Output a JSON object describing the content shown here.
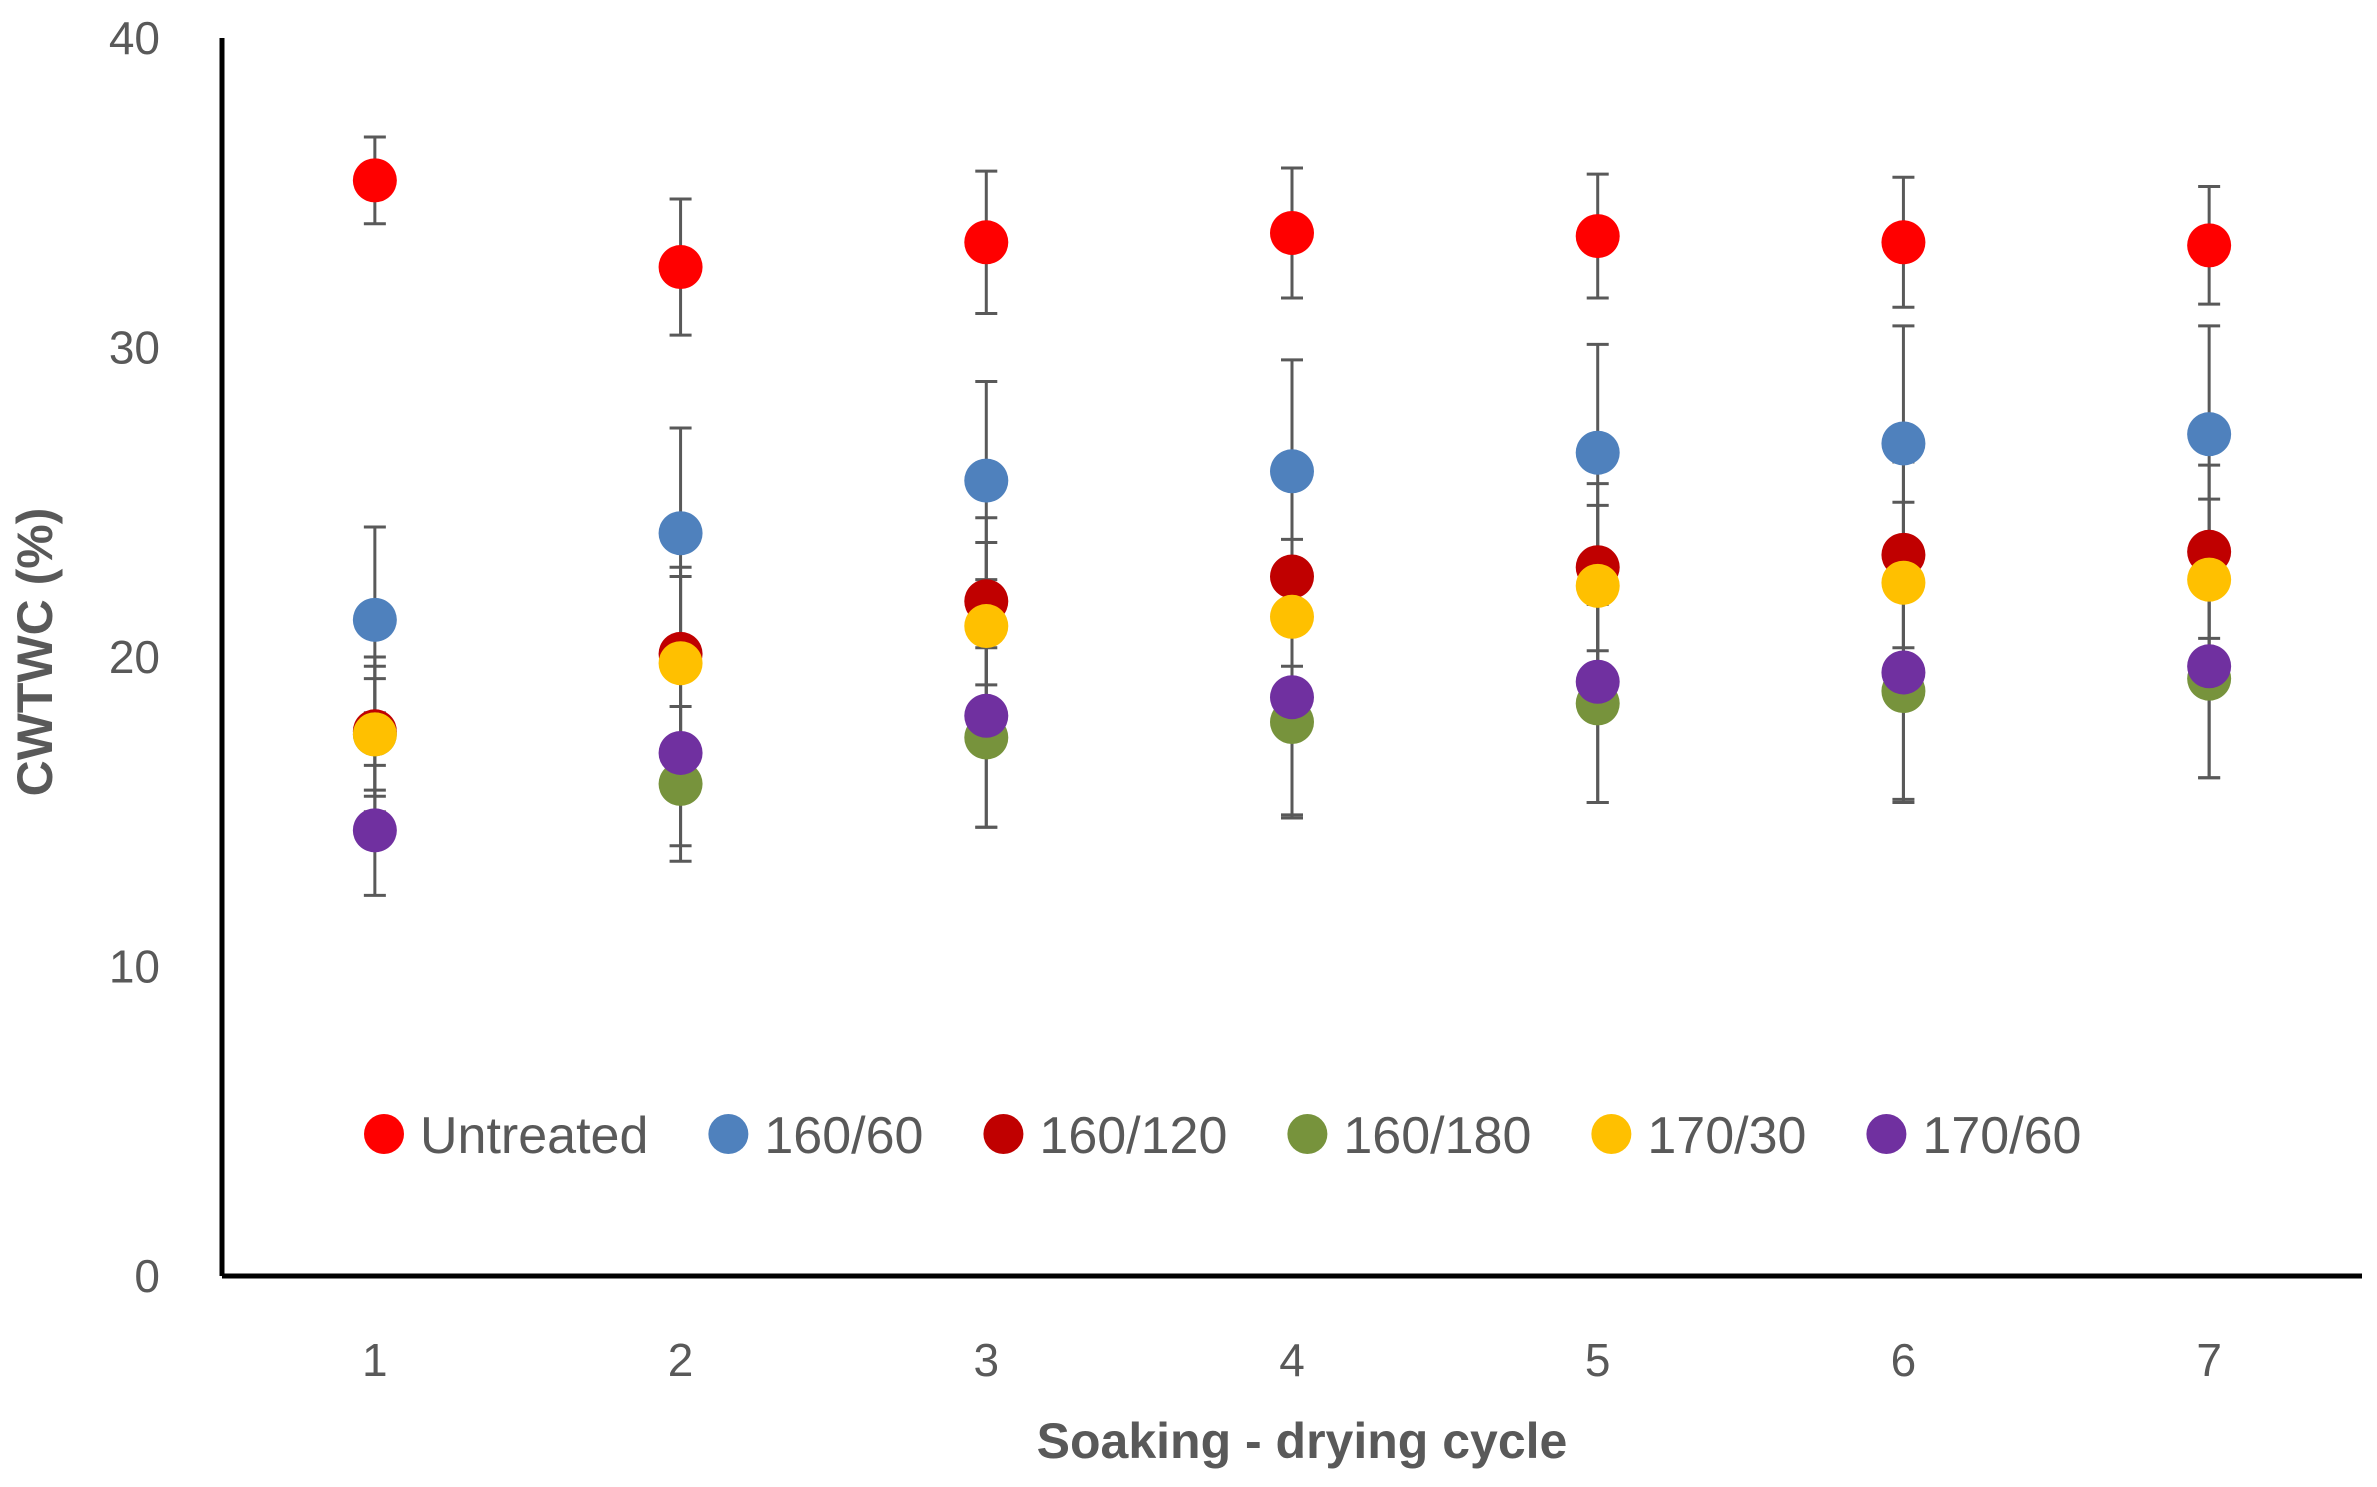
{
  "chart_data": {
    "type": "scatter",
    "title": "",
    "xlabel": "Soaking - drying cycle",
    "ylabel": "CWTWC (%)",
    "x": [
      1,
      2,
      3,
      4,
      5,
      6,
      7
    ],
    "x_ticks": [
      "1",
      "2",
      "3",
      "4",
      "5",
      "6",
      "7"
    ],
    "xlim": [
      0.5,
      7.5
    ],
    "ylim": [
      0,
      40
    ],
    "y_ticks": [
      "0",
      "10",
      "20",
      "30",
      "40"
    ],
    "grid": false,
    "legend_position": "bottom-inside",
    "series": [
      {
        "name": "Untreated",
        "color": "#FF0000",
        "values": [
          35.4,
          32.6,
          33.4,
          33.7,
          33.6,
          33.4,
          33.3
        ],
        "error": [
          1.4,
          2.2,
          2.3,
          2.1,
          2.0,
          2.1,
          1.9
        ]
      },
      {
        "name": "160/60",
        "color": "#4F81BD",
        "values": [
          21.2,
          24.0,
          25.7,
          26.0,
          26.6,
          26.9,
          27.2
        ],
        "error": [
          3.0,
          3.4,
          3.2,
          3.6,
          3.5,
          3.8,
          3.5
        ]
      },
      {
        "name": "160/120",
        "color": "#C00000",
        "values": [
          17.6,
          20.1,
          21.8,
          22.6,
          22.9,
          23.3,
          23.4
        ],
        "error": [
          2.1,
          2.8,
          2.7,
          2.9,
          2.7,
          3.0,
          2.8
        ]
      },
      {
        "name": "160/180",
        "color": "#77933C",
        "values": [
          17.5,
          15.9,
          17.4,
          17.9,
          18.5,
          18.9,
          19.3
        ],
        "error": [
          1.8,
          2.5,
          2.9,
          3.0,
          3.2,
          3.5,
          3.2
        ]
      },
      {
        "name": "170/30",
        "color": "#FFC000",
        "values": [
          17.5,
          19.8,
          21.0,
          21.3,
          22.3,
          22.4,
          22.5
        ],
        "error": [
          2.5,
          2.8,
          2.7,
          2.5,
          2.6,
          2.6,
          2.6
        ]
      },
      {
        "name": "170/60",
        "color": "#7030A0",
        "values": [
          14.4,
          16.9,
          18.1,
          18.7,
          19.2,
          19.5,
          19.7
        ],
        "error": [
          2.1,
          3.0,
          3.6,
          3.9,
          3.9,
          4.2,
          3.6
        ]
      }
    ]
  }
}
